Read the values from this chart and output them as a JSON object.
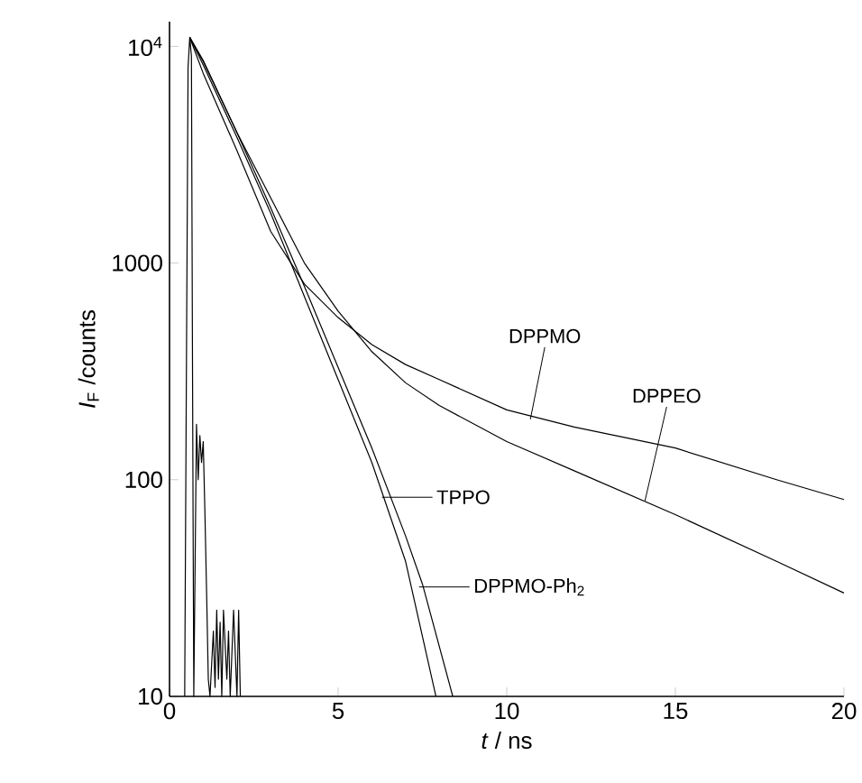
{
  "chart_data": {
    "type": "line",
    "xlabel": "*t* / ns",
    "ylabel": "*I*$_{F}$ /counts",
    "log": "y",
    "xlim": [
      0,
      20
    ],
    "ylim": [
      10,
      13000
    ],
    "xticks": [
      0,
      5,
      10,
      15,
      20
    ],
    "yticks": [
      10,
      100,
      1000,
      {
        "value": 10000,
        "label": "10$^{4}$"
      }
    ],
    "series": [
      {
        "color": "#000000",
        "x": [
          0.45,
          0.5,
          0.55,
          0.6,
          0.65,
          0.68,
          0.7,
          0.72,
          0.8,
          0.85,
          0.9,
          0.95,
          1.0,
          1.05,
          1.1,
          1.15,
          1.2,
          1.3,
          1.35,
          1.4,
          1.45,
          1.5,
          1.55,
          1.6,
          1.7,
          1.75,
          1.8,
          1.9,
          2.0,
          2.05,
          2.1
        ],
        "values": [
          10,
          300,
          8000,
          11000,
          9000,
          400,
          60,
          10,
          180,
          100,
          160,
          120,
          150,
          70,
          30,
          12,
          10,
          20,
          11,
          25,
          12,
          22,
          10,
          25,
          12,
          20,
          10,
          25,
          10,
          25,
          10
        ]
      },
      {
        "color": "#000000",
        "x": [
          0.6,
          1,
          2,
          3,
          4,
          5,
          6,
          7,
          8,
          10,
          12,
          15,
          18,
          20
        ],
        "values": [
          11000,
          7500,
          3300,
          1400,
          800,
          560,
          420,
          340,
          290,
          210,
          175,
          140,
          100,
          81
        ]
      },
      {
        "color": "#000000",
        "x": [
          0.6,
          1,
          2,
          3,
          4,
          5,
          6,
          7,
          8,
          10,
          12,
          15,
          18,
          20
        ],
        "values": [
          11000,
          8500,
          4000,
          2000,
          1000,
          600,
          390,
          280,
          220,
          150,
          110,
          69,
          42,
          30
        ]
      },
      {
        "color": "#000000",
        "x": [
          0.6,
          1,
          2,
          3,
          4,
          5,
          6,
          7,
          7.9
        ],
        "values": [
          11000,
          8200,
          3800,
          1700,
          700,
          290,
          120,
          42,
          10
        ]
      },
      {
        "color": "#000000",
        "x": [
          0.6,
          1,
          2,
          3,
          4,
          5,
          6,
          7,
          7.5,
          8.4
        ],
        "values": [
          11000,
          8600,
          4000,
          1800,
          780,
          330,
          140,
          55,
          33,
          10
        ]
      }
    ],
    "annotations": [
      {
        "text": "DPPMO",
        "x": 10.7,
        "y": 190
      },
      {
        "text": "DPPEO",
        "x": 14.1,
        "y": 80
      },
      {
        "text": "TPPO",
        "x": 6.3,
        "y": 83
      },
      {
        "text": "DPPMO-Ph$_{2}$",
        "x": 7.4,
        "y": 32
      }
    ]
  }
}
